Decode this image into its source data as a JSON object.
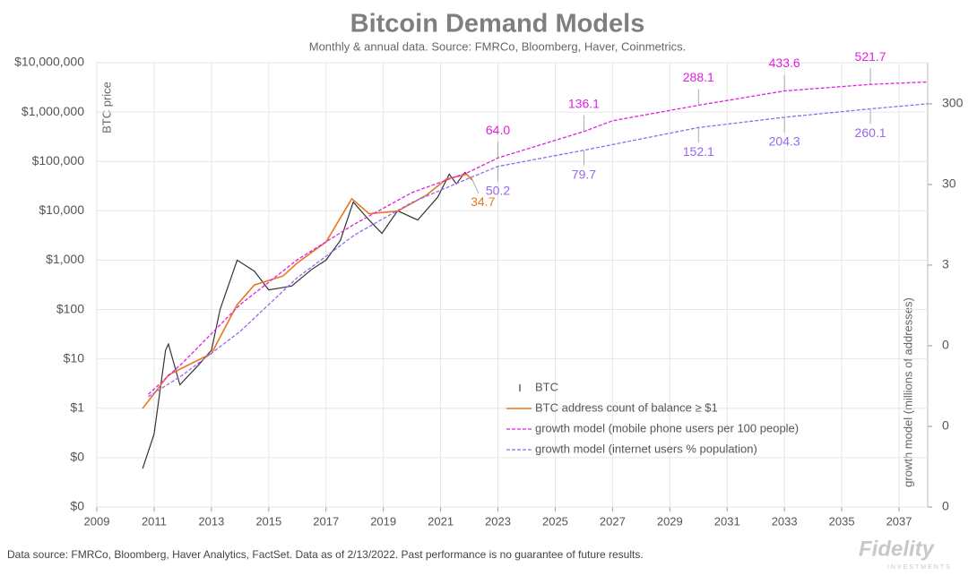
{
  "chart_data": {
    "type": "line",
    "title": "Bitcoin Demand Models",
    "subtitle": "Monthly & annual data.  Source: FMRCo, Bloomberg, Haver, Coinmetrics.",
    "ylabel": "BTC price",
    "y2label": "growth model (millions of addresses)",
    "log_y": true,
    "log_y2": true,
    "grid": true,
    "legend": "lower right",
    "xlim": [
      2009,
      2038
    ],
    "xticks": [
      2009,
      2011,
      2013,
      2015,
      2017,
      2019,
      2021,
      2023,
      2025,
      2027,
      2029,
      2031,
      2033,
      2035,
      2037
    ],
    "ylim": [
      0.01,
      10000000
    ],
    "yticks": [
      {
        "value": 0.01,
        "label": "$0"
      },
      {
        "value": 0.1,
        "label": "$0"
      },
      {
        "value": 1,
        "label": "$1"
      },
      {
        "value": 10,
        "label": "$10"
      },
      {
        "value": 100,
        "label": "$100"
      },
      {
        "value": 1000,
        "label": "$1,000"
      },
      {
        "value": 10000,
        "label": "$10,000"
      },
      {
        "value": 100000,
        "label": "$100,000"
      },
      {
        "value": 1000000,
        "label": "$1,000,000"
      },
      {
        "value": 10000000,
        "label": "$10,000,000"
      }
    ],
    "y2lim": [
      0.003,
      970
    ],
    "y2ticks": [
      {
        "value": 0.003,
        "label": "0"
      },
      {
        "value": 0.03,
        "label": "0"
      },
      {
        "value": 0.3,
        "label": "0"
      },
      3,
      30,
      300
    ],
    "series": [
      {
        "name": "BTC",
        "color": "#333333",
        "x": [
          2010.6,
          2011.0,
          2011.4,
          2011.5,
          2011.9,
          2012.5,
          2013.0,
          2013.3,
          2013.9,
          2014.5,
          2015.0,
          2015.8,
          2016.5,
          2017.0,
          2017.5,
          2017.95,
          2018.5,
          2018.95,
          2019.5,
          2020.2,
          2020.9,
          2021.3,
          2021.55,
          2021.85,
          2022.1
        ],
        "values": [
          0.06,
          0.3,
          15,
          20,
          3,
          7,
          15,
          100,
          1000,
          600,
          250,
          300,
          650,
          1000,
          2500,
          15000,
          6500,
          3500,
          10000,
          6500,
          19000,
          55000,
          35000,
          60000,
          42000
        ]
      },
      {
        "name": "BTC address count of balance ≥ $1",
        "color": "#e87722",
        "axis": "y2",
        "x": [
          2010.6,
          2011.5,
          2012.0,
          2013.0,
          2013.9,
          2014.5,
          2015.5,
          2016.0,
          2017.0,
          2017.9,
          2018.5,
          2019.5,
          2020.5,
          2021.2,
          2021.9,
          2022.1
        ],
        "values": [
          0.05,
          0.13,
          0.16,
          0.24,
          0.97,
          1.7,
          2.2,
          3.2,
          5.8,
          20,
          13,
          14,
          22,
          35,
          40,
          34.7
        ],
        "value_labels": [
          null,
          null,
          null,
          null,
          null,
          null,
          null,
          null,
          null,
          null,
          null,
          null,
          null,
          null,
          null,
          "34.7"
        ]
      },
      {
        "name": "growth model (mobile phone users per 100 people)",
        "color": "#e020e0",
        "axis": "y2",
        "x": [
          2010.8,
          2012,
          2014,
          2016,
          2018,
          2020,
          2022,
          2023,
          2026,
          2027,
          2030,
          2033,
          2036,
          2038
        ],
        "values": [
          0.075,
          0.185,
          0.97,
          3.5,
          9.7,
          23.8,
          43,
          64,
          136.1,
          185,
          288.1,
          433.6,
          521.7,
          560
        ],
        "value_labels": [
          null,
          null,
          null,
          null,
          null,
          null,
          null,
          "64.0",
          "136.1",
          null,
          "288.1",
          "433.6",
          "521.7",
          null
        ]
      },
      {
        "name": "growth model (internet users % population)",
        "color": "#9966ee",
        "axis": "y2",
        "x": [
          2010.8,
          2012,
          2014,
          2016,
          2018,
          2020,
          2022,
          2023,
          2026,
          2030,
          2033,
          2036,
          2038
        ],
        "values": [
          0.07,
          0.13,
          0.45,
          2.1,
          7.1,
          18,
          36,
          50.2,
          79.7,
          152.1,
          204.3,
          260.1,
          300
        ],
        "value_labels": [
          null,
          null,
          null,
          null,
          null,
          null,
          null,
          "50.2",
          "79.7",
          "152.1",
          "204.3",
          "260.1",
          null
        ]
      }
    ],
    "footer": "Data source: FMRCo, Bloomberg, Haver Analytics, FactSet. Data as of 2/13/2022. Past performance is no guarantee of future results.",
    "logo": "Fidelity",
    "logo_sub": "INVESTMENTS"
  }
}
